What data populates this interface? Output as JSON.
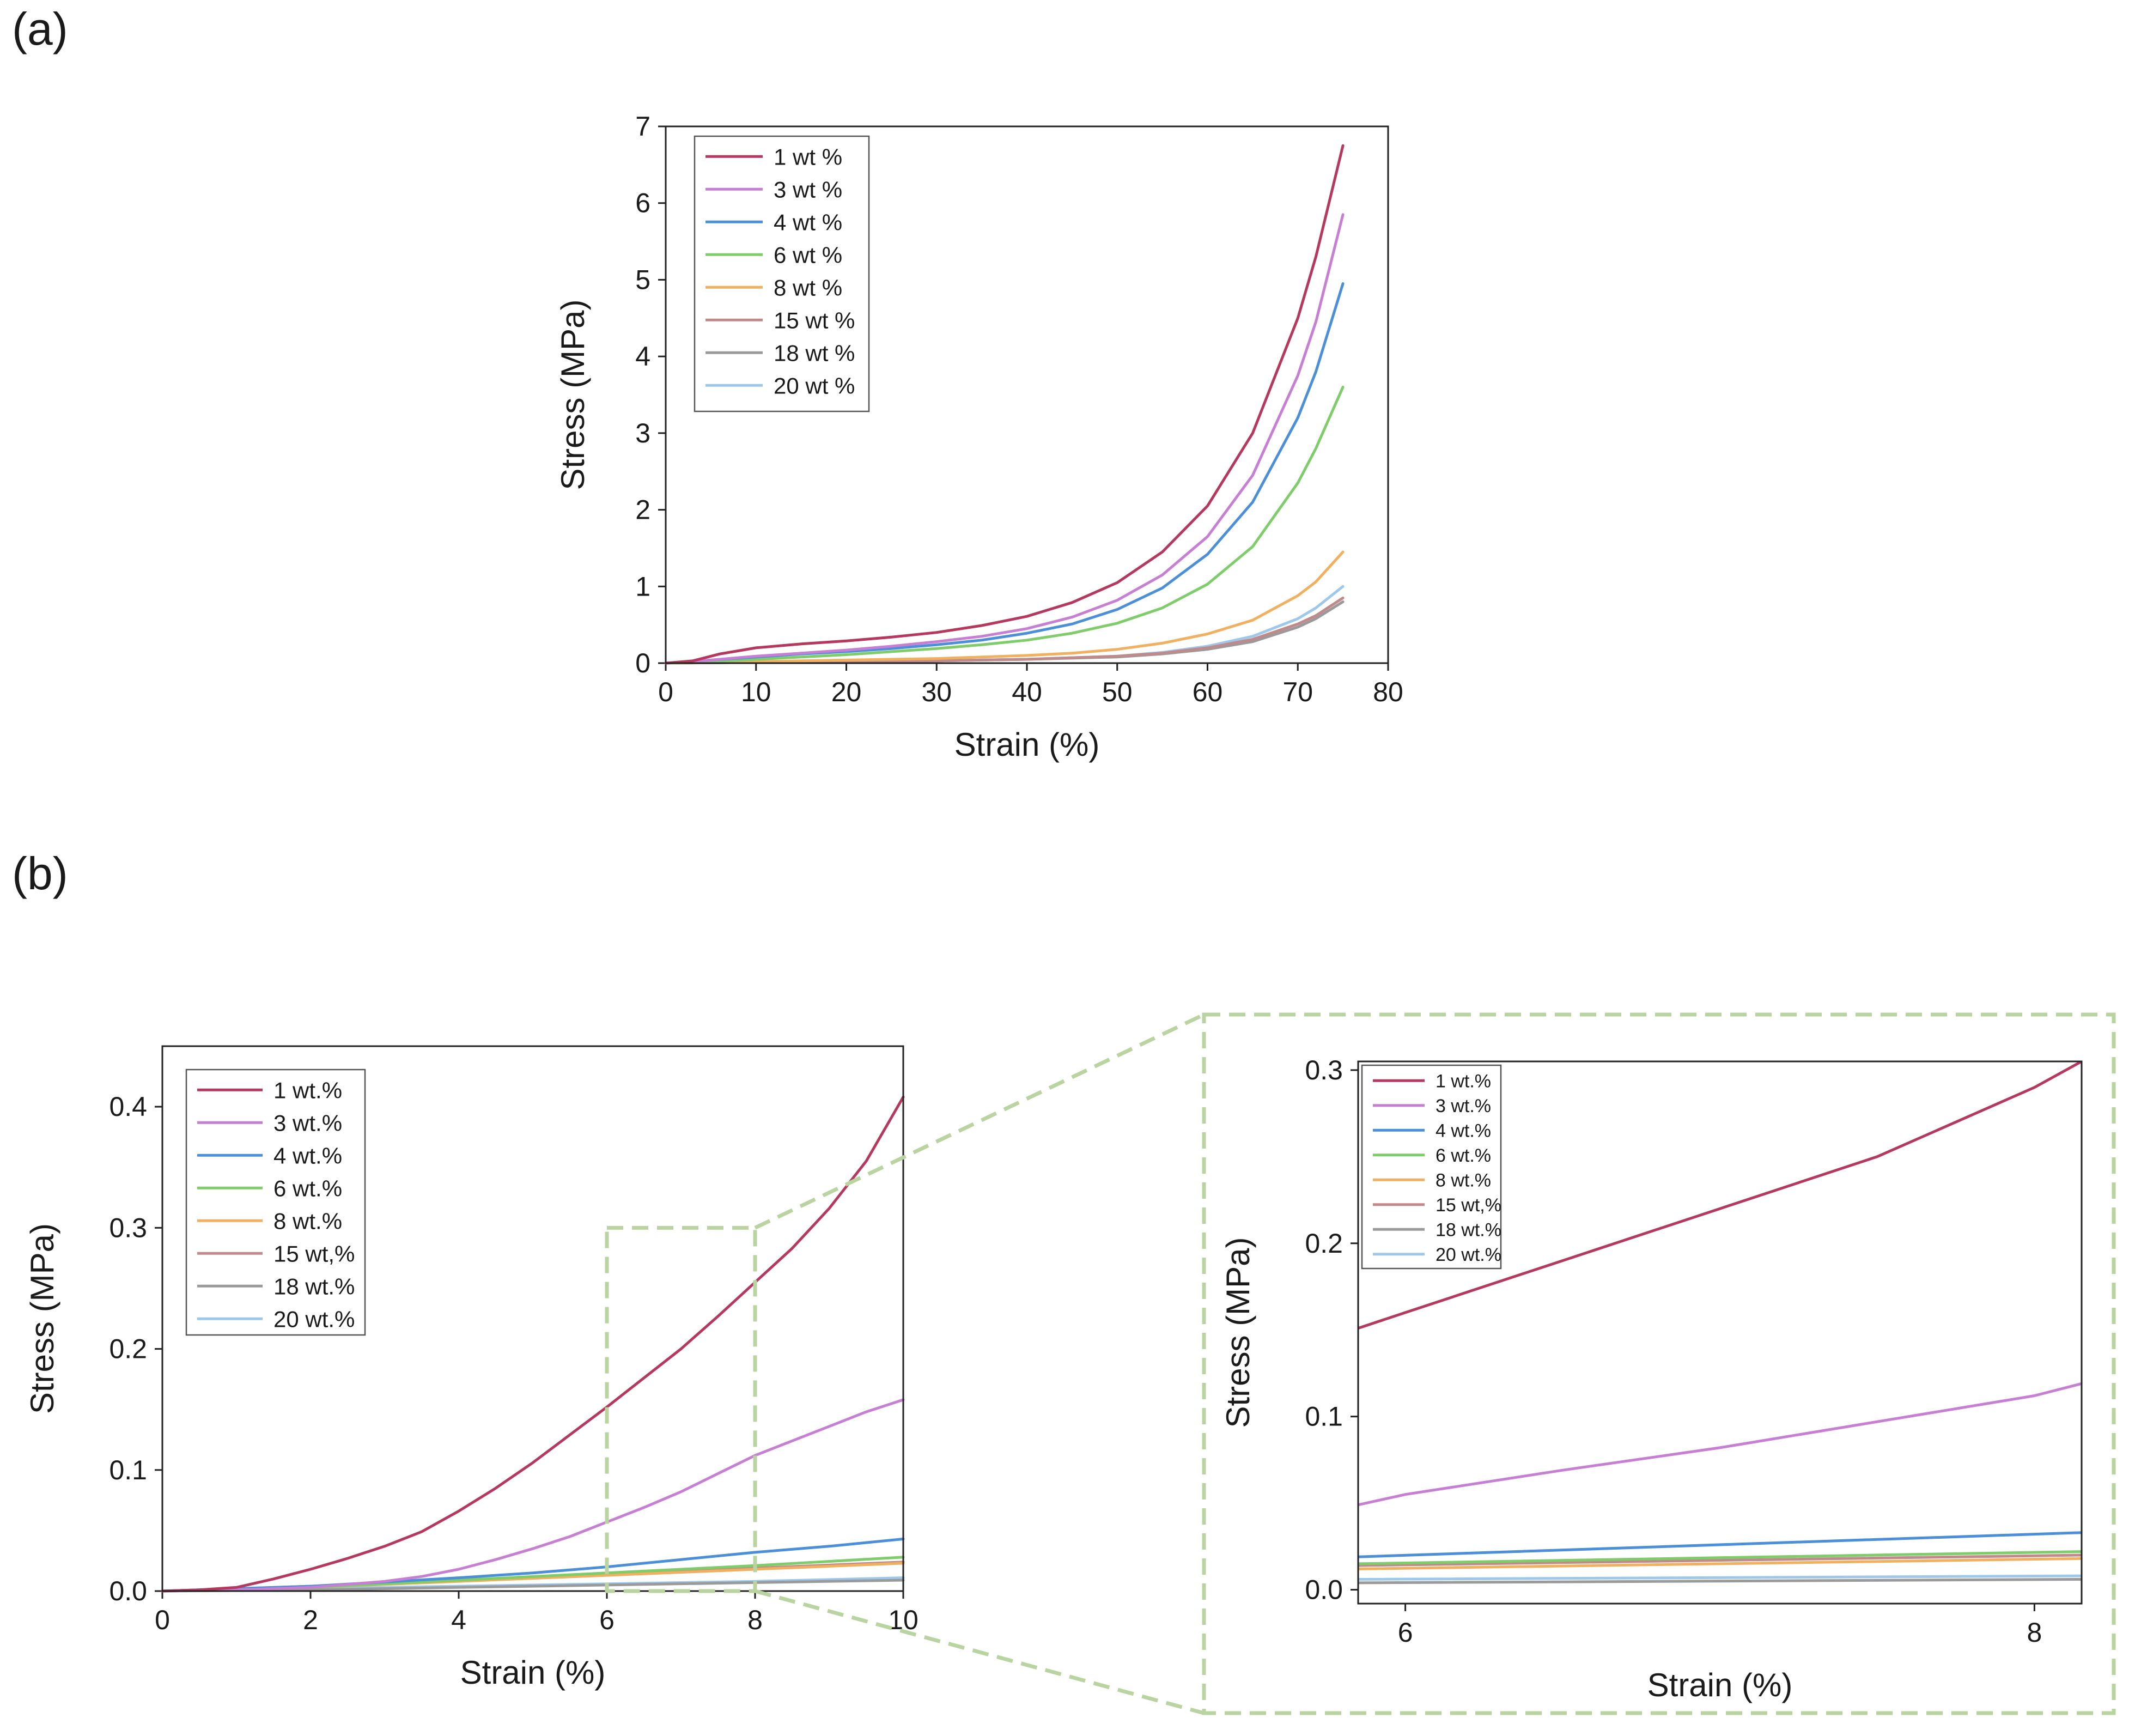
{
  "chart_data": [
    {
      "panel": "(a)",
      "type": "line",
      "xlabel": "Strain (%)",
      "ylabel": "Stress (MPa)",
      "xlim": [
        0,
        80
      ],
      "ylim": [
        0,
        7
      ],
      "xticks": [
        0,
        10,
        20,
        30,
        40,
        50,
        60,
        70,
        80
      ],
      "yticks": [
        0,
        1,
        2,
        3,
        4,
        5,
        6,
        7
      ],
      "grid": false,
      "legend_position": "top-left",
      "series": [
        {
          "name": "1 wt %",
          "color": "#b5385f",
          "x": [
            0,
            3,
            6,
            10,
            15,
            20,
            25,
            30,
            35,
            40,
            45,
            50,
            55,
            60,
            65,
            70,
            72,
            75
          ],
          "y": [
            0,
            0.03,
            0.12,
            0.2,
            0.25,
            0.29,
            0.34,
            0.4,
            0.49,
            0.61,
            0.79,
            1.05,
            1.45,
            2.05,
            3.0,
            4.5,
            5.3,
            6.75
          ]
        },
        {
          "name": "3 wt %",
          "color": "#c77fd4",
          "x": [
            0,
            5,
            10,
            15,
            20,
            25,
            30,
            35,
            40,
            45,
            50,
            55,
            60,
            65,
            70,
            72,
            75
          ],
          "y": [
            0,
            0.04,
            0.09,
            0.13,
            0.17,
            0.22,
            0.28,
            0.35,
            0.45,
            0.6,
            0.82,
            1.15,
            1.65,
            2.45,
            3.75,
            4.45,
            5.85
          ]
        },
        {
          "name": "4 wt %",
          "color": "#4b8fd8",
          "x": [
            0,
            5,
            10,
            15,
            20,
            25,
            30,
            35,
            40,
            45,
            50,
            55,
            60,
            65,
            70,
            72,
            75
          ],
          "y": [
            0,
            0.04,
            0.08,
            0.12,
            0.15,
            0.19,
            0.24,
            0.3,
            0.39,
            0.51,
            0.7,
            0.98,
            1.42,
            2.1,
            3.2,
            3.8,
            4.95
          ]
        },
        {
          "name": "6 wt %",
          "color": "#7fcc6a",
          "x": [
            0,
            5,
            10,
            15,
            20,
            25,
            30,
            35,
            40,
            45,
            50,
            55,
            60,
            65,
            70,
            72,
            75
          ],
          "y": [
            0,
            0.02,
            0.05,
            0.08,
            0.11,
            0.15,
            0.19,
            0.24,
            0.3,
            0.39,
            0.52,
            0.72,
            1.03,
            1.52,
            2.35,
            2.8,
            3.6
          ]
        },
        {
          "name": "8 wt %",
          "color": "#f0b060",
          "x": [
            0,
            10,
            20,
            30,
            40,
            45,
            50,
            55,
            60,
            65,
            70,
            72,
            75
          ],
          "y": [
            0,
            0.02,
            0.04,
            0.06,
            0.1,
            0.13,
            0.18,
            0.26,
            0.38,
            0.56,
            0.88,
            1.06,
            1.45
          ]
        },
        {
          "name": "15 wt %",
          "color": "#c08a8a",
          "x": [
            0,
            10,
            20,
            30,
            40,
            50,
            55,
            60,
            65,
            70,
            72,
            75
          ],
          "y": [
            0,
            0.01,
            0.02,
            0.03,
            0.05,
            0.09,
            0.13,
            0.2,
            0.31,
            0.51,
            0.62,
            0.85
          ]
        },
        {
          "name": "18 wt %",
          "color": "#9a9a9a",
          "x": [
            0,
            10,
            20,
            30,
            40,
            50,
            55,
            60,
            65,
            70,
            72,
            75
          ],
          "y": [
            0,
            0.01,
            0.02,
            0.03,
            0.05,
            0.08,
            0.12,
            0.18,
            0.28,
            0.47,
            0.58,
            0.8
          ]
        },
        {
          "name": "20 wt %",
          "color": "#9dc8ec",
          "x": [
            0,
            10,
            20,
            30,
            40,
            50,
            55,
            60,
            65,
            70,
            72,
            75
          ],
          "y": [
            0,
            0.01,
            0.02,
            0.03,
            0.05,
            0.09,
            0.14,
            0.22,
            0.35,
            0.58,
            0.72,
            1.0
          ]
        }
      ]
    },
    {
      "panel": "(b)",
      "type": "line",
      "xlabel": "Strain (%)",
      "ylabel": "Stress (MPa)",
      "xlim": [
        0,
        10
      ],
      "ylim": [
        0,
        0.45
      ],
      "xticks": [
        0,
        2,
        4,
        6,
        8,
        10
      ],
      "yticks": [
        "0.0",
        "0.1",
        "0.2",
        "0.3",
        "0.4"
      ],
      "grid": false,
      "legend_position": "top-left",
      "zoom_box": {
        "x": [
          6,
          8
        ],
        "y": [
          0,
          0.3
        ]
      },
      "series": [
        {
          "name": "1 wt.%",
          "color": "#b5385f",
          "x": [
            0,
            0.5,
            1,
            1.5,
            2,
            2.5,
            3,
            3.5,
            4,
            4.5,
            5,
            5.5,
            6,
            6.5,
            7,
            7.5,
            8,
            8.5,
            9,
            9.5,
            10
          ],
          "y": [
            0,
            0.001,
            0.003,
            0.01,
            0.018,
            0.027,
            0.037,
            0.049,
            0.066,
            0.085,
            0.106,
            0.129,
            0.152,
            0.176,
            0.2,
            0.227,
            0.255,
            0.283,
            0.316,
            0.355,
            0.408
          ]
        },
        {
          "name": "3 wt.%",
          "color": "#c77fd4",
          "x": [
            0,
            1,
            2,
            3,
            3.5,
            4,
            4.5,
            5,
            5.5,
            6,
            6.5,
            7,
            7.5,
            8,
            8.5,
            9,
            9.5,
            10
          ],
          "y": [
            0,
            0.001,
            0.003,
            0.008,
            0.012,
            0.018,
            0.026,
            0.035,
            0.045,
            0.057,
            0.069,
            0.082,
            0.097,
            0.112,
            0.124,
            0.136,
            0.148,
            0.158
          ]
        },
        {
          "name": "4 wt.%",
          "color": "#4b8fd8",
          "x": [
            0,
            2,
            4,
            5,
            6,
            7,
            8,
            9,
            10
          ],
          "y": [
            0,
            0.004,
            0.011,
            0.015,
            0.02,
            0.026,
            0.032,
            0.037,
            0.043
          ]
        },
        {
          "name": "6 wt.%",
          "color": "#7fcc6a",
          "x": [
            0,
            2,
            4,
            6,
            8,
            10
          ],
          "y": [
            0,
            0.003,
            0.009,
            0.015,
            0.021,
            0.028
          ]
        },
        {
          "name": "8 wt.%",
          "color": "#f0b060",
          "x": [
            0,
            2,
            4,
            6,
            8,
            10
          ],
          "y": [
            0,
            0.003,
            0.008,
            0.013,
            0.018,
            0.023
          ]
        },
        {
          "name": "15 wt,%",
          "color": "#c08a8a",
          "x": [
            0,
            2,
            4,
            6,
            8,
            10
          ],
          "y": [
            0,
            0.004,
            0.009,
            0.014,
            0.019,
            0.024
          ]
        },
        {
          "name": "18 wt.%",
          "color": "#9a9a9a",
          "x": [
            0,
            2,
            4,
            6,
            8,
            10
          ],
          "y": [
            0,
            0.001,
            0.003,
            0.005,
            0.007,
            0.009
          ]
        },
        {
          "name": "20 wt.%",
          "color": "#9dc8ec",
          "x": [
            0,
            2,
            4,
            6,
            8,
            10
          ],
          "y": [
            0,
            0.002,
            0.004,
            0.006,
            0.008,
            0.011
          ]
        }
      ]
    },
    {
      "panel": "(b) inset",
      "type": "line",
      "xlabel": "Strain (%)",
      "ylabel": "Stress (MPa)",
      "xlim": [
        5.85,
        8.15
      ],
      "ylim": [
        -0.008,
        0.305
      ],
      "xticks": [
        6,
        8
      ],
      "yticks": [
        "0.0",
        "0.1",
        "0.2",
        "0.3"
      ],
      "grid": false,
      "legend_position": "top-left",
      "series": [
        {
          "name": "1 wt.%",
          "color": "#b5385f",
          "x": [
            5.85,
            6,
            6.5,
            7,
            7.5,
            8,
            8.15
          ],
          "y": [
            0.151,
            0.16,
            0.19,
            0.22,
            0.25,
            0.29,
            0.305
          ]
        },
        {
          "name": "3 wt.%",
          "color": "#c77fd4",
          "x": [
            5.85,
            6,
            6.5,
            7,
            7.5,
            8,
            8.15
          ],
          "y": [
            0.049,
            0.055,
            0.069,
            0.082,
            0.097,
            0.112,
            0.119
          ]
        },
        {
          "name": "4 wt.%",
          "color": "#4b8fd8",
          "x": [
            5.85,
            8.15
          ],
          "y": [
            0.019,
            0.033
          ]
        },
        {
          "name": "6 wt.%",
          "color": "#7fcc6a",
          "x": [
            5.85,
            8.15
          ],
          "y": [
            0.015,
            0.022
          ]
        },
        {
          "name": "8 wt.%",
          "color": "#f0b060",
          "x": [
            5.85,
            8.15
          ],
          "y": [
            0.012,
            0.018
          ]
        },
        {
          "name": "15 wt,%",
          "color": "#c08a8a",
          "x": [
            5.85,
            8.15
          ],
          "y": [
            0.014,
            0.02
          ]
        },
        {
          "name": "18 wt.%",
          "color": "#9a9a9a",
          "x": [
            5.85,
            8.15
          ],
          "y": [
            0.004,
            0.006
          ]
        },
        {
          "name": "20 wt.%",
          "color": "#9dc8ec",
          "x": [
            5.85,
            8.15
          ],
          "y": [
            0.006,
            0.008
          ]
        }
      ]
    }
  ]
}
